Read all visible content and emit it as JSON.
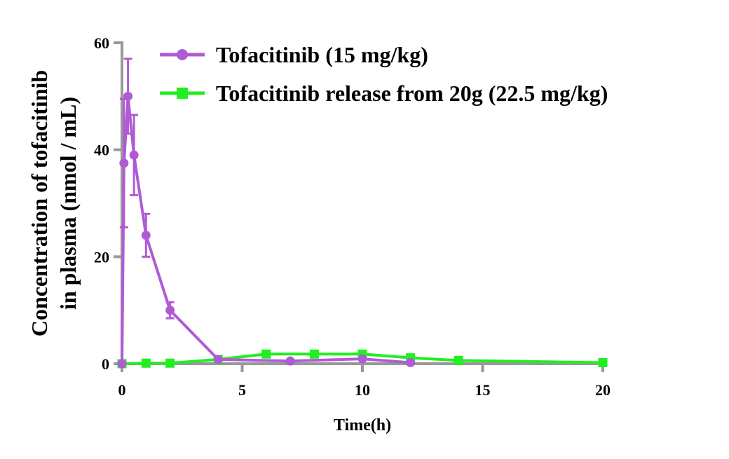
{
  "chart_data": {
    "type": "line",
    "title": "",
    "xlabel": "Time(h)",
    "ylabel_line1": "Concentration of tofacitinib",
    "ylabel_line2": "in plasma (nmol / mL)",
    "xlim": [
      0,
      20
    ],
    "ylim": [
      0,
      60
    ],
    "xticks": [
      0,
      5,
      10,
      15,
      20
    ],
    "yticks": [
      0,
      20,
      40,
      60
    ],
    "grid": false,
    "legend_position": "top-right",
    "axis_color": "#999999",
    "series": [
      {
        "name": "Tofacitinib (15 mg/kg)",
        "color": "#B05BD6",
        "marker": "circle",
        "x": [
          0,
          0.083,
          0.25,
          0.5,
          1,
          2,
          4,
          7,
          10,
          12
        ],
        "y": [
          0,
          37.5,
          50,
          39,
          24,
          10,
          0.8,
          0.5,
          0.9,
          0.2
        ],
        "err": [
          0,
          12,
          7,
          7.5,
          4,
          1.5,
          0,
          0,
          0,
          0
        ]
      },
      {
        "name": "Tofacitinib release from 20g (22.5 mg/kg)",
        "color": "#22EE22",
        "marker": "square",
        "x": [
          0,
          1,
          2,
          4,
          6,
          8,
          10,
          12,
          14,
          20
        ],
        "y": [
          0,
          0.1,
          0.1,
          0.8,
          1.8,
          1.8,
          1.8,
          1.1,
          0.6,
          0.2
        ],
        "err": [
          0,
          0,
          0,
          0,
          0,
          0,
          0,
          0,
          0,
          0
        ]
      }
    ]
  }
}
